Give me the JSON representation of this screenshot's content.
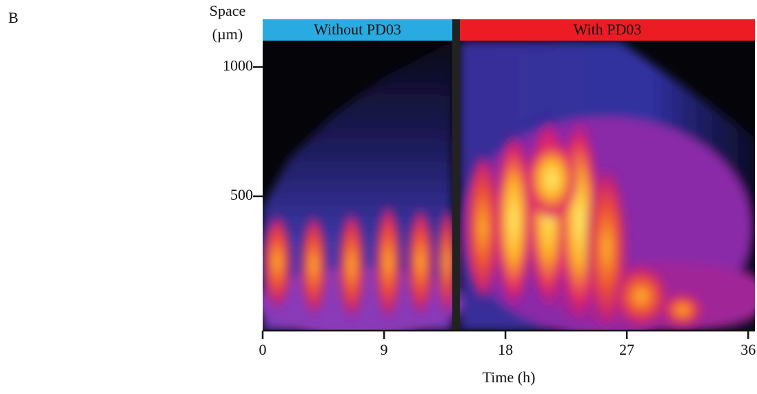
{
  "panel_label": "B",
  "chart_data": {
    "type": "kymograph",
    "y_label_line1": "Space",
    "y_label_line2": "(µm)",
    "x_label": "Time (h)",
    "conditions": [
      {
        "label": "Without PD03",
        "color": "#29abe2"
      },
      {
        "label": "With PD03",
        "color": "#ed1c24"
      }
    ],
    "xlim": [
      0,
      36.5
    ],
    "xticks": [
      0,
      9,
      18,
      27,
      36
    ],
    "ylim": [
      -20,
      1105
    ],
    "yticks": [
      500,
      1000
    ]
  }
}
